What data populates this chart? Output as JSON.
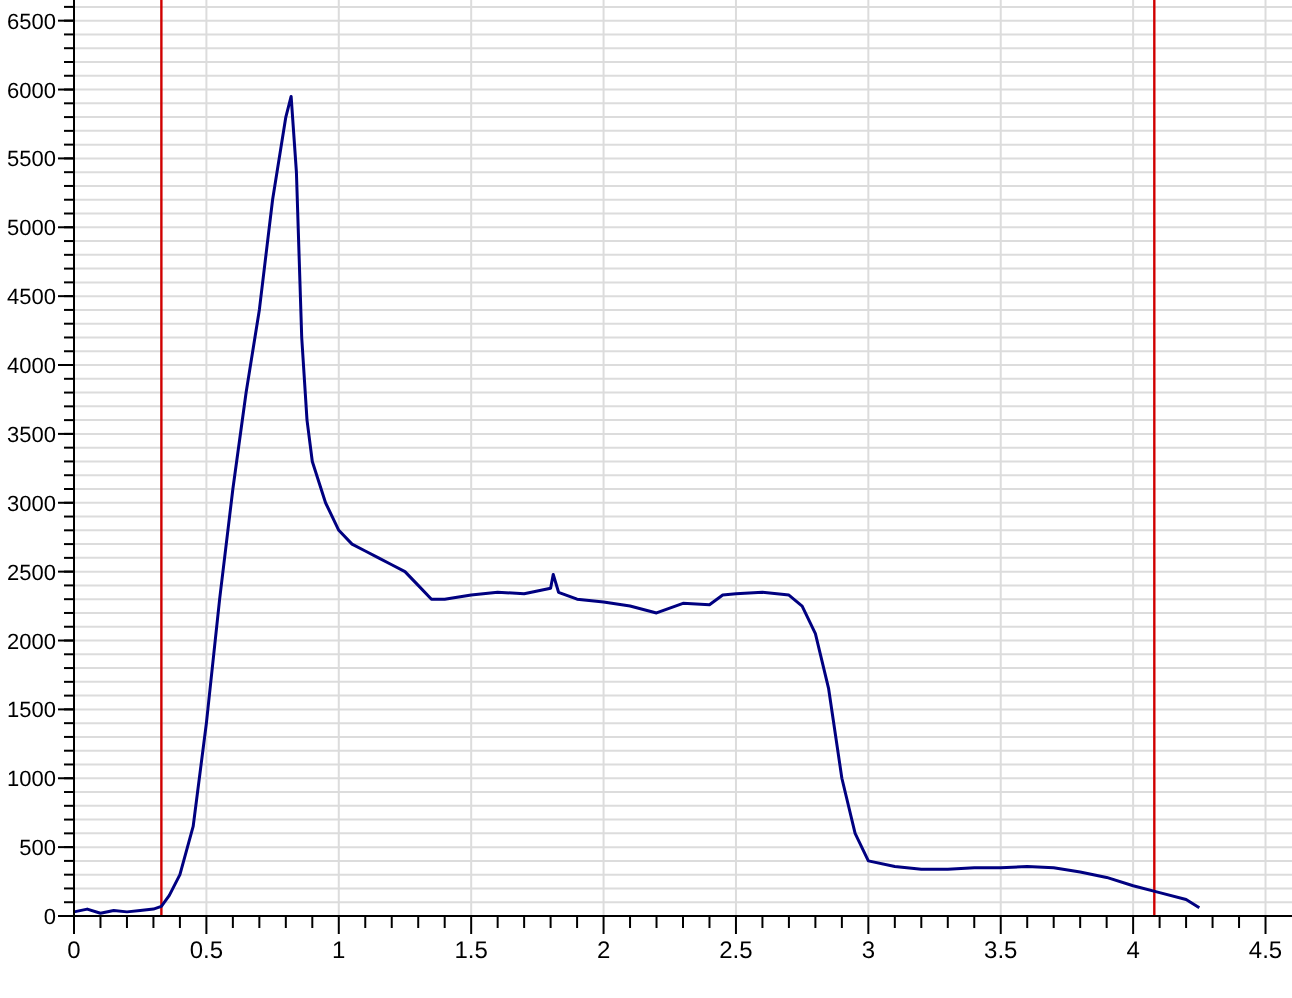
{
  "chart_data": {
    "type": "line",
    "xlim": [
      0,
      4.6
    ],
    "ylim": [
      0,
      6650
    ],
    "grid": true,
    "marker": "none",
    "line_style": "solid",
    "xticks": [
      0,
      {
        "value": 0.1,
        "label": null
      },
      {
        "value": 0.2,
        "label": null
      },
      {
        "value": 0.3,
        "label": null
      },
      {
        "value": 0.4,
        "label": null
      },
      0.5,
      {
        "value": 0.6,
        "label": null
      },
      {
        "value": 0.7,
        "label": null
      },
      {
        "value": 0.8,
        "label": null
      },
      {
        "value": 0.9,
        "label": null
      },
      1,
      {
        "value": 1.1,
        "label": null
      },
      {
        "value": 1.2,
        "label": null
      },
      {
        "value": 1.3,
        "label": null
      },
      {
        "value": 1.4,
        "label": null
      },
      1.5,
      {
        "value": 1.6,
        "label": null
      },
      {
        "value": 1.7,
        "label": null
      },
      {
        "value": 1.8,
        "label": null
      },
      {
        "value": 1.9,
        "label": null
      },
      2,
      {
        "value": 2.1,
        "label": null
      },
      {
        "value": 2.2,
        "label": null
      },
      {
        "value": 2.3,
        "label": null
      },
      {
        "value": 2.4,
        "label": null
      },
      2.5,
      {
        "value": 2.6,
        "label": null
      },
      {
        "value": 2.7,
        "label": null
      },
      {
        "value": 2.8,
        "label": null
      },
      {
        "value": 2.9,
        "label": null
      },
      3,
      {
        "value": 3.1,
        "label": null
      },
      {
        "value": 3.2,
        "label": null
      },
      {
        "value": 3.3,
        "label": null
      },
      {
        "value": 3.4,
        "label": null
      },
      3.5,
      {
        "value": 3.6,
        "label": null
      },
      {
        "value": 3.7,
        "label": null
      },
      {
        "value": 3.8,
        "label": null
      },
      {
        "value": 3.9,
        "label": null
      },
      4,
      {
        "value": 4.1,
        "label": null
      },
      {
        "value": 4.2,
        "label": null
      },
      {
        "value": 4.3,
        "label": null
      },
      {
        "value": 4.4,
        "label": null
      },
      4.5
    ],
    "yticks": [
      0,
      500,
      1000,
      1500,
      2000,
      2500,
      3000,
      3500,
      4000,
      4500,
      5000,
      5500,
      6000,
      6500
    ],
    "ref_lines": [
      {
        "axis": "x",
        "value": 0.33,
        "color": "#d00000"
      },
      {
        "axis": "x",
        "value": 4.08,
        "color": "#d00000"
      }
    ],
    "series": [
      {
        "color": "#000080",
        "x": [
          0,
          0.05,
          0.1,
          0.15,
          0.2,
          0.25,
          0.3,
          0.33,
          0.36,
          0.4,
          0.45,
          0.5,
          0.55,
          0.6,
          0.65,
          0.7,
          0.75,
          0.8,
          0.82,
          0.84,
          0.86,
          0.88,
          0.9,
          0.95,
          1.0,
          1.05,
          1.1,
          1.15,
          1.2,
          1.25,
          1.3,
          1.35,
          1.4,
          1.5,
          1.6,
          1.7,
          1.8,
          1.81,
          1.83,
          1.9,
          2.0,
          2.1,
          2.2,
          2.3,
          2.4,
          2.45,
          2.5,
          2.6,
          2.7,
          2.75,
          2.8,
          2.85,
          2.9,
          2.95,
          3.0,
          3.1,
          3.2,
          3.3,
          3.4,
          3.5,
          3.6,
          3.7,
          3.8,
          3.9,
          4.0,
          4.1,
          4.2,
          4.25
        ],
        "values": [
          30,
          50,
          20,
          40,
          30,
          40,
          50,
          70,
          150,
          300,
          650,
          1400,
          2300,
          3100,
          3800,
          4400,
          5200,
          5800,
          5950,
          5400,
          4200,
          3600,
          3300,
          3000,
          2800,
          2700,
          2650,
          2600,
          2550,
          2500,
          2400,
          2300,
          2300,
          2330,
          2350,
          2340,
          2380,
          2480,
          2350,
          2300,
          2280,
          2250,
          2200,
          2270,
          2260,
          2330,
          2340,
          2350,
          2330,
          2250,
          2050,
          1650,
          1000,
          600,
          400,
          360,
          340,
          340,
          350,
          350,
          360,
          350,
          320,
          280,
          220,
          170,
          120,
          60
        ]
      }
    ]
  }
}
